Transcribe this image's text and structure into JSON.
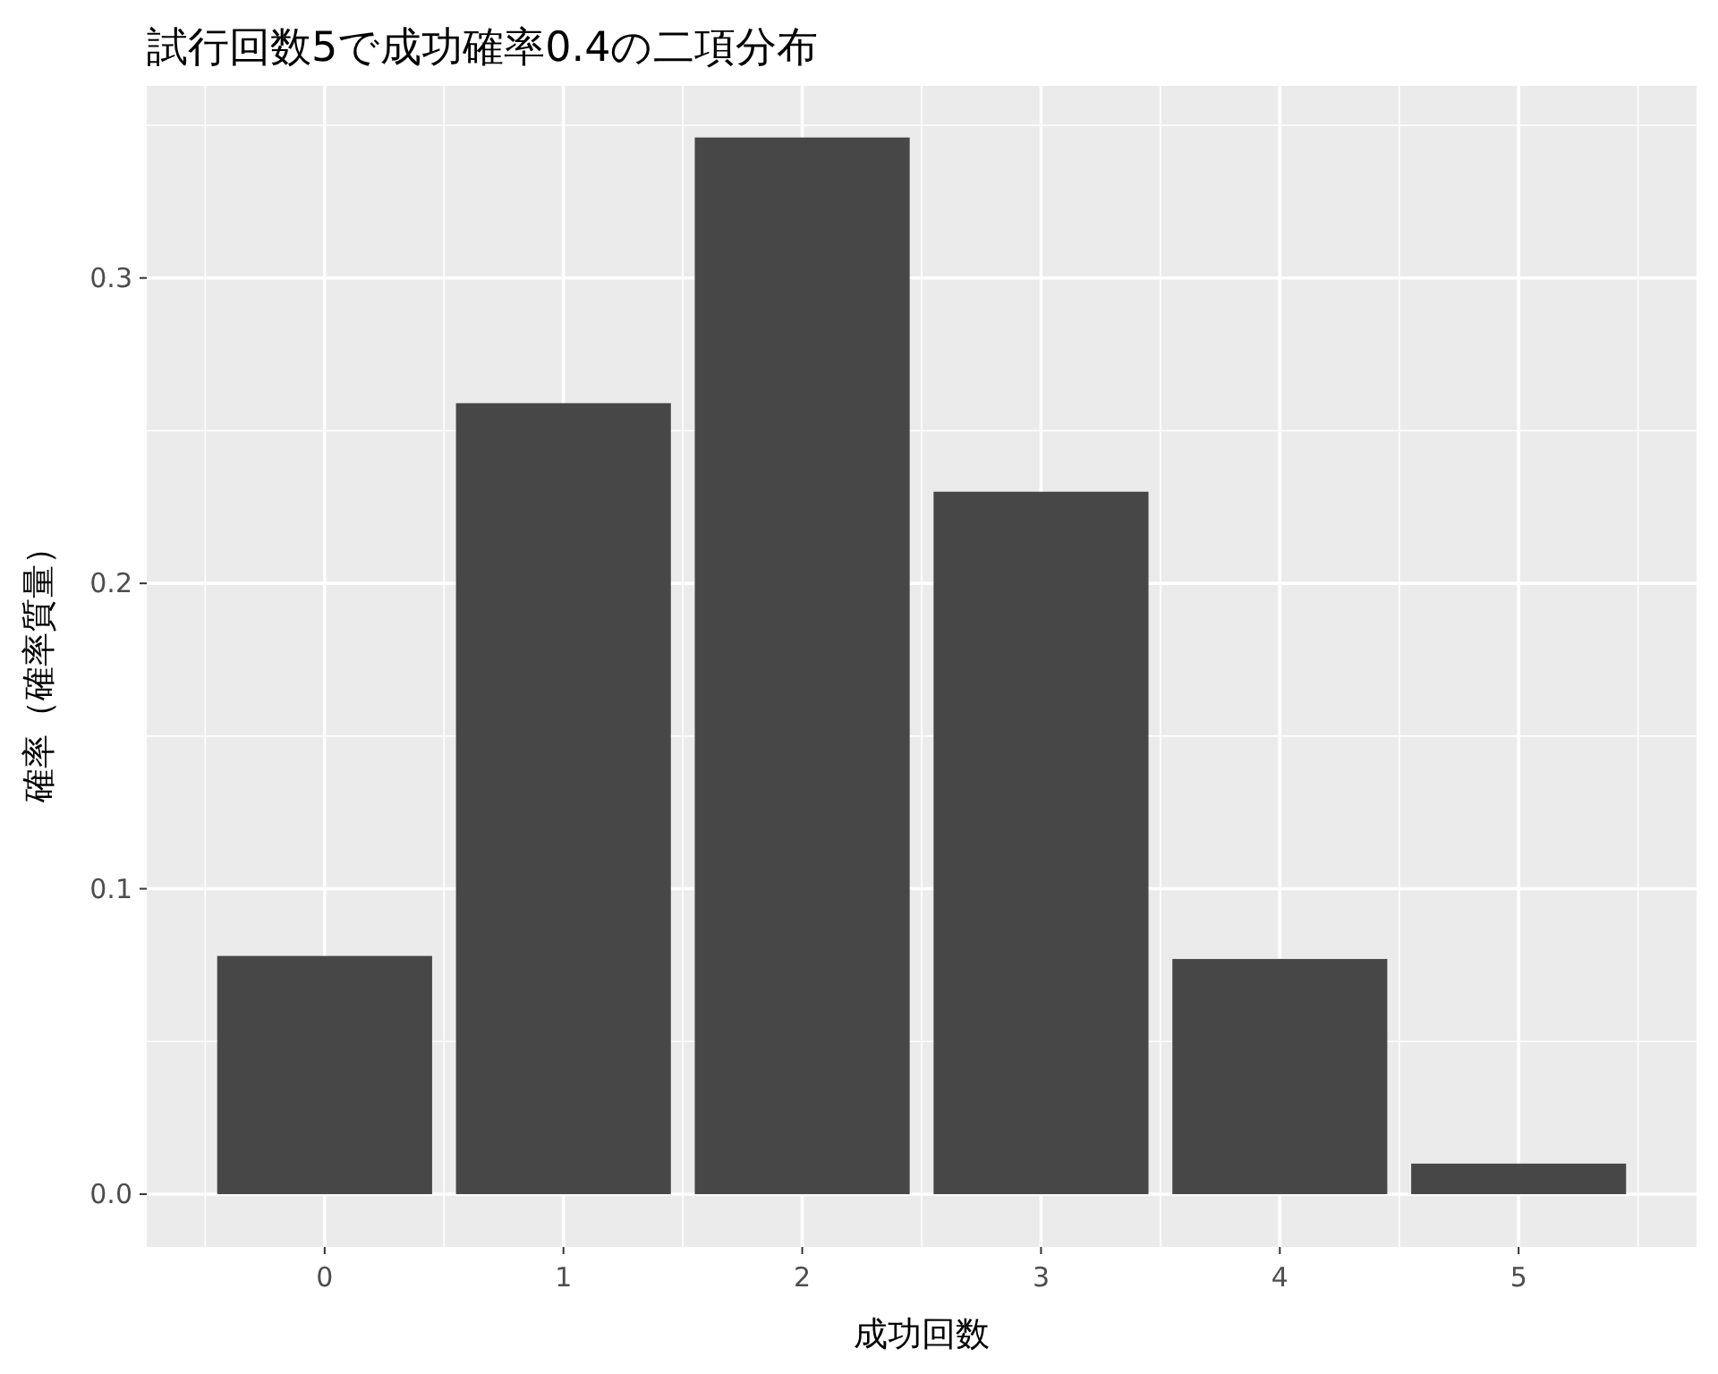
{
  "chart_data": {
    "type": "bar",
    "title": "試行回数5で成功確率0.4の二項分布",
    "xlabel": "成功回数",
    "ylabel": "確率（確率質量）",
    "x": [
      0,
      1,
      2,
      3,
      4,
      5
    ],
    "values": [
      0.078,
      0.259,
      0.346,
      0.23,
      0.077,
      0.01
    ],
    "color": "#474747",
    "xlim": [
      -0.745,
      5.745
    ],
    "ylim": [
      -0.0173,
      0.3629
    ],
    "xticks": [
      0,
      1,
      2,
      3,
      4,
      5
    ],
    "yticks": [
      {
        "value": 0,
        "label": "0.0"
      },
      {
        "value": 0.1,
        "label": "0.1"
      },
      {
        "value": 0.2,
        "label": "0.2"
      },
      {
        "value": 0.3,
        "label": "0.3"
      }
    ],
    "grid": true
  }
}
